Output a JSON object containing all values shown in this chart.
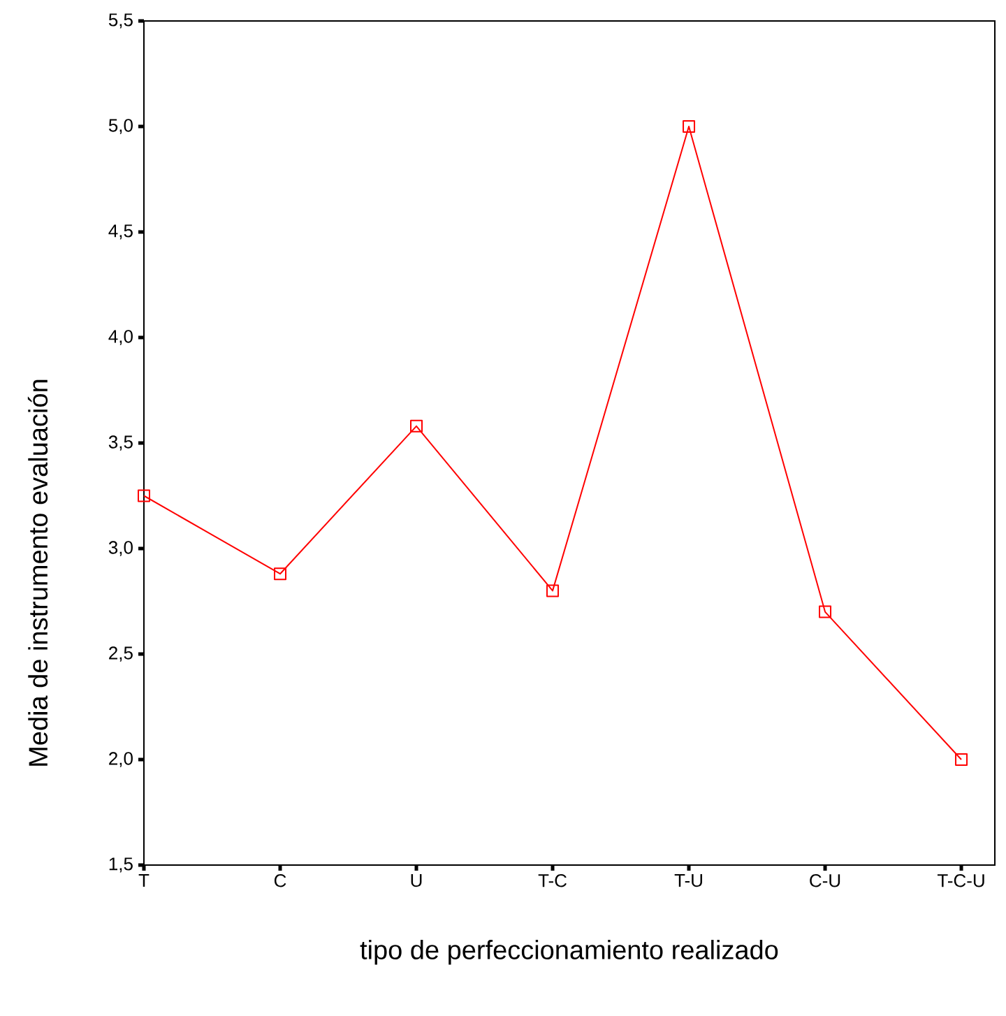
{
  "chart_data": {
    "type": "line",
    "xlabel": "tipo de perfeccionamiento realizado",
    "ylabel": "Media de instrumento evaluación",
    "categories": [
      "T",
      "C",
      "U",
      "T-C",
      "T-U",
      "C-U",
      "T-C-U"
    ],
    "values": [
      3.25,
      2.88,
      3.58,
      2.8,
      5.0,
      2.7,
      2.0
    ],
    "color": "#ff0000",
    "marker": "square",
    "line_style": "solid",
    "grid": false,
    "ylim": [
      1.5,
      5.5
    ],
    "yticks": [
      {
        "value": 1.5,
        "label": "1,5"
      },
      {
        "value": 2.0,
        "label": "2,0"
      },
      {
        "value": 2.5,
        "label": "2,5"
      },
      {
        "value": 3.0,
        "label": "3,0"
      },
      {
        "value": 3.5,
        "label": "3,5"
      },
      {
        "value": 4.0,
        "label": "4,0"
      },
      {
        "value": 4.5,
        "label": "4,5"
      },
      {
        "value": 5.0,
        "label": "5,0"
      },
      {
        "value": 5.5,
        "label": "5,5"
      }
    ]
  }
}
